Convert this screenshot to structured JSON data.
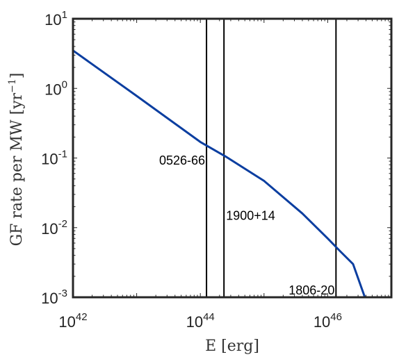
{
  "chart_data": {
    "type": "line",
    "xscale": "log",
    "yscale": "log",
    "xlim": [
      1e+42,
      1e+47
    ],
    "ylim": [
      0.001,
      10
    ],
    "xlabel": {
      "main": "E [erg]"
    },
    "ylabel": {
      "main": "GF rate per MW [yr",
      "sup": "−1",
      "close": "]"
    },
    "xticks": [
      {
        "value": 1e+42,
        "base": "10",
        "exp": "42"
      },
      {
        "value": 1e+44,
        "base": "10",
        "exp": "44"
      },
      {
        "value": 1e+46,
        "base": "10",
        "exp": "46"
      }
    ],
    "yticks": [
      {
        "value": 10,
        "base": "10",
        "exp": "1"
      },
      {
        "value": 1,
        "base": "10",
        "exp": "0"
      },
      {
        "value": 0.1,
        "base": "10",
        "exp": "-1"
      },
      {
        "value": 0.01,
        "base": "10",
        "exp": "-2"
      },
      {
        "value": 0.001,
        "base": "10",
        "exp": "-3"
      }
    ],
    "grid": false,
    "box": true,
    "series": [
      {
        "color": "#0b3ea0",
        "x": [
          1e+42,
          1e+43,
          1e+44,
          2.5e+44,
          1e+45,
          4e+45,
          1e+46,
          1.6e+46,
          2.5e+46,
          4e+46
        ],
        "y": [
          3.5,
          0.78,
          0.17,
          0.105,
          0.047,
          0.016,
          0.007,
          0.0045,
          0.003,
          0.0009
        ]
      }
    ],
    "vlines": [
      {
        "x": 1.25e+44,
        "label": "0526-66",
        "label_y": 0.08,
        "label_side": "left"
      },
      {
        "x": 2.35e+44,
        "label": "1900+14",
        "label_y": 0.013,
        "label_side": "right"
      },
      {
        "x": 1.35e+46,
        "label": "1806-20",
        "label_y": 0.0011,
        "label_side": "left"
      }
    ]
  }
}
